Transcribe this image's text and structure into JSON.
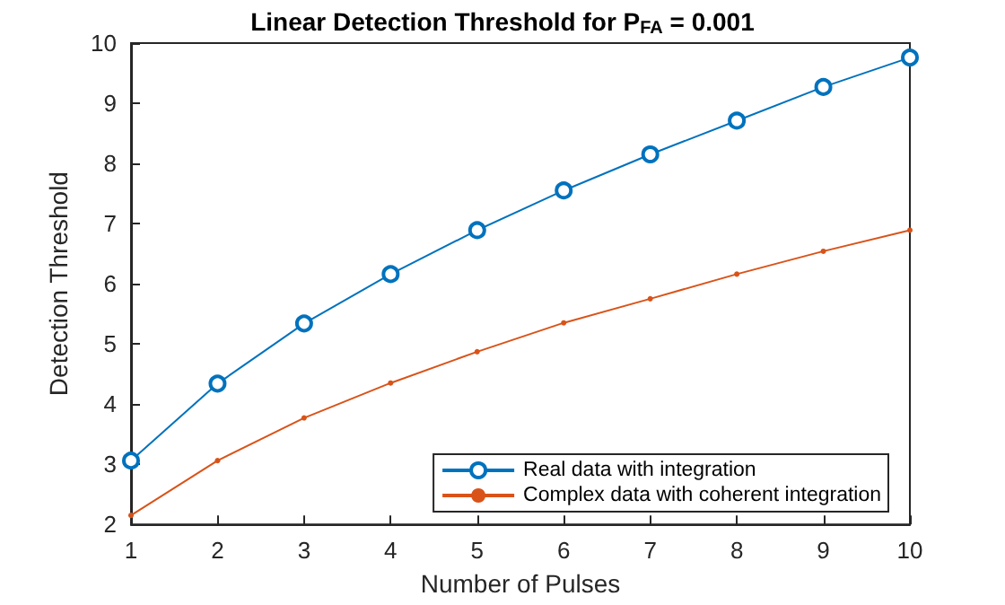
{
  "chart_data": {
    "type": "line",
    "title": "Linear Detection Threshold for P$_{FA}$ = 0.001",
    "xlabel": "Number of Pulses",
    "ylabel": "Detection Threshold",
    "x": [
      1,
      2,
      3,
      4,
      5,
      6,
      7,
      8,
      9,
      10
    ],
    "series": [
      {
        "name": "Real data with integration",
        "color": "#0072bd",
        "marker": "circle",
        "values": [
          3.06,
          4.34,
          5.34,
          6.16,
          6.89,
          7.55,
          8.15,
          8.71,
          9.27,
          9.76
        ]
      },
      {
        "name": "Complex data with coherent integration",
        "color": "#d95319",
        "marker": "point",
        "values": [
          2.15,
          3.06,
          3.77,
          4.35,
          4.87,
          5.35,
          5.75,
          6.16,
          6.54,
          6.89
        ]
      }
    ],
    "xlim": [
      1,
      10
    ],
    "xticks": [
      1,
      2,
      3,
      4,
      5,
      6,
      7,
      8,
      9,
      10
    ],
    "ylim": [
      2,
      10
    ],
    "yticks": [
      2,
      3,
      4,
      5,
      6,
      7,
      8,
      9,
      10
    ],
    "grid": false,
    "legend": "bottom right",
    "line_style": "solid"
  }
}
